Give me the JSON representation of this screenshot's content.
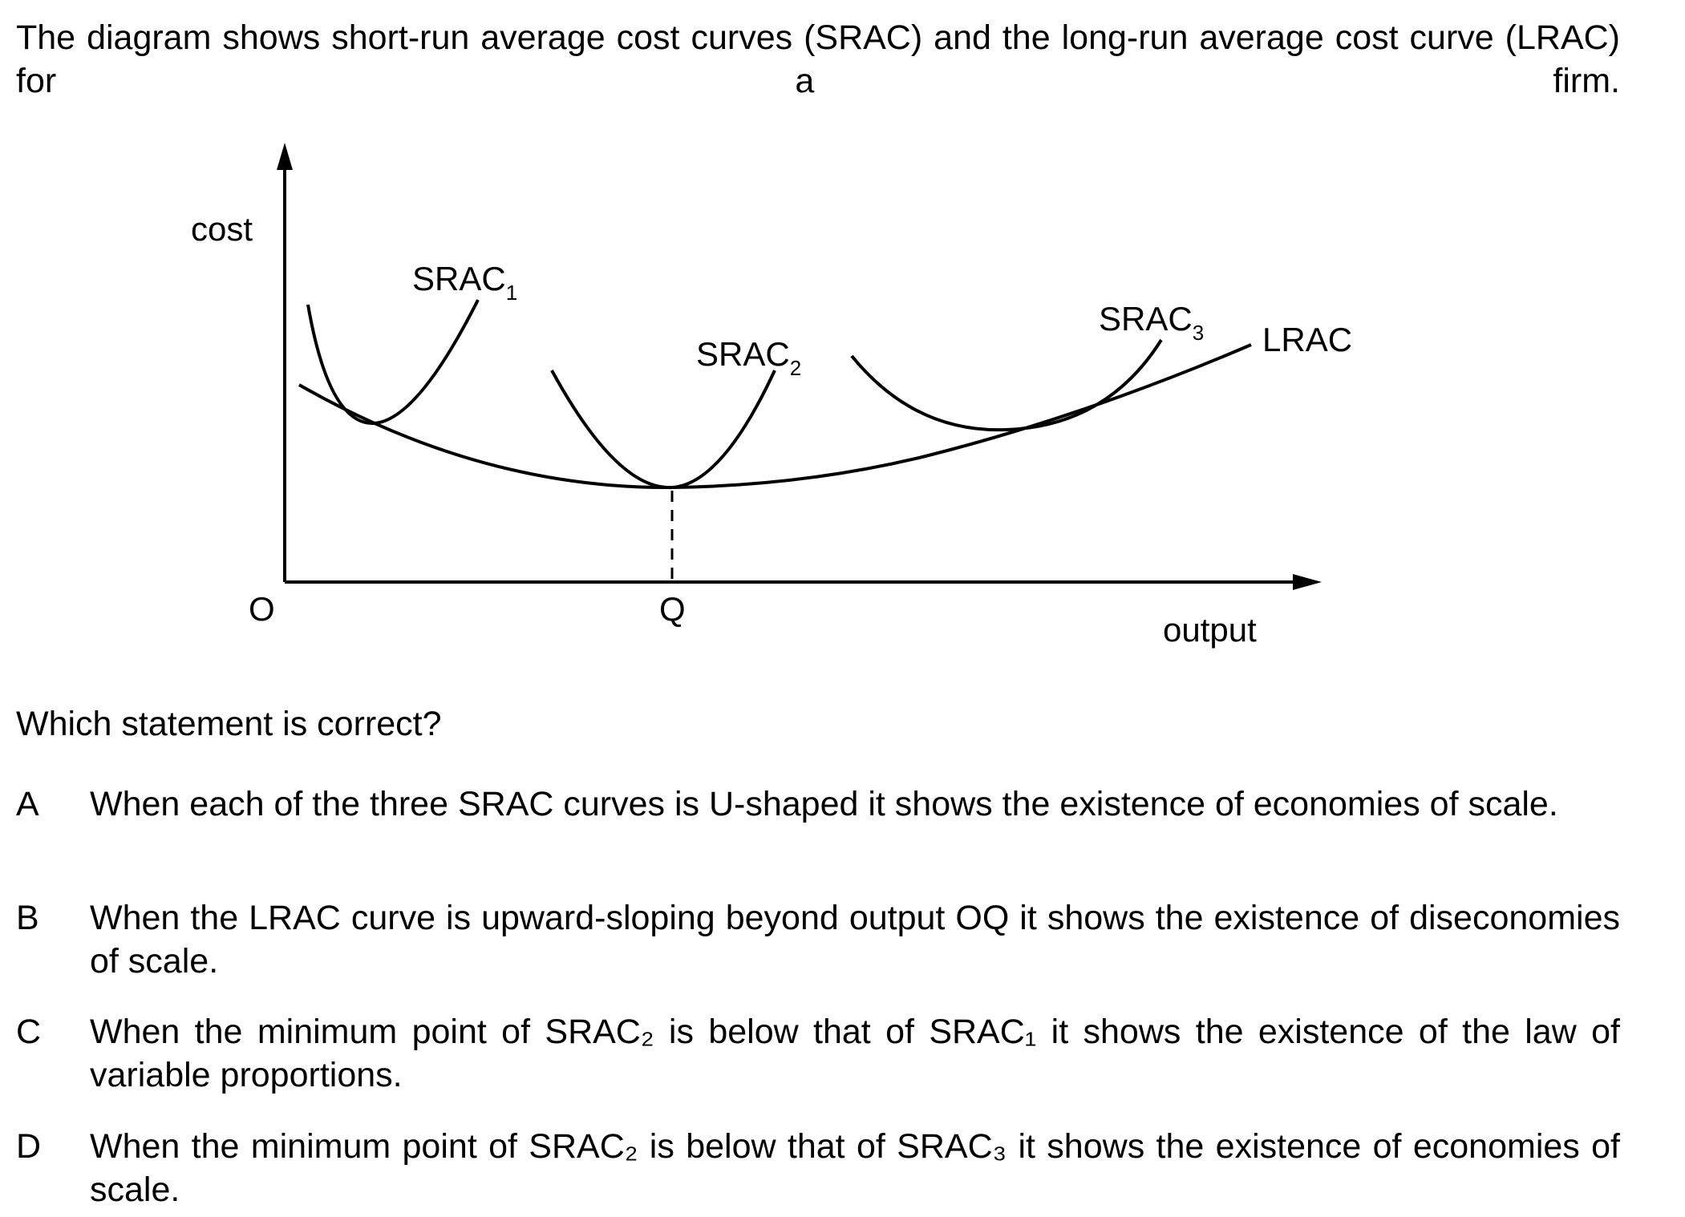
{
  "intro": {
    "text": "The diagram shows short-run average cost curves (SRAC) and the long-run average cost curve (LRAC) for a firm."
  },
  "diagram": {
    "y_axis_label": "cost",
    "x_axis_label": "output",
    "origin_label": "O",
    "q_label": "Q",
    "curves": {
      "srac1": {
        "base": "SRAC",
        "sub": "1"
      },
      "srac2": {
        "base": "SRAC",
        "sub": "2"
      },
      "srac3": {
        "base": "SRAC",
        "sub": "3"
      },
      "lrac": {
        "label": "LRAC"
      }
    }
  },
  "question": {
    "prompt": "Which statement is correct?",
    "options": [
      {
        "letter": "A",
        "text": "When each of the three SRAC curves is U-shaped it shows the existence of economies of scale."
      },
      {
        "letter": "B",
        "text": "When the LRAC curve is upward-sloping beyond output OQ it shows the existence of diseconomies of scale."
      },
      {
        "letter": "C",
        "text": "When the minimum point of SRAC₂ is below that of SRAC₁ it shows the existence of the law of variable proportions."
      },
      {
        "letter": "D",
        "text": "When the minimum point of SRAC₂ is below that of SRAC₃ it shows the existence of economies of scale."
      }
    ]
  }
}
